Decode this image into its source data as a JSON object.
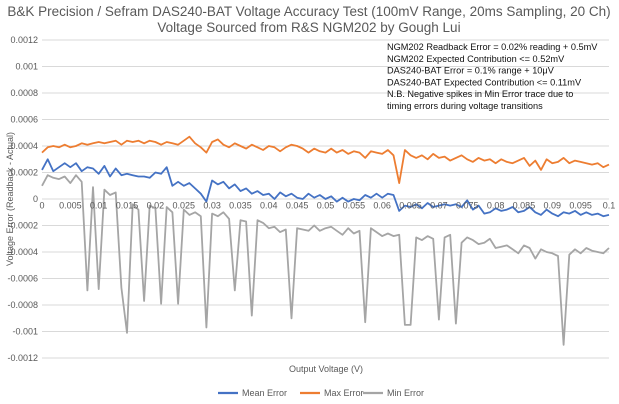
{
  "chart_data": {
    "type": "line",
    "title": "B&K Precision / Sefram DAS240-BAT Voltage Accuracy Test (100mV Range, 20ms Sampling, 20 Ch)",
    "subtitle": "Voltage Sourced from R&S NGM202 by Gough Lui",
    "xlabel": "Output Voltage (V)",
    "ylabel": "Voltage Error (Readback - Actual)",
    "xlim": [
      0,
      0.1
    ],
    "ylim": [
      -0.0012,
      0.0012
    ],
    "grid": true,
    "legend_position": "bottom",
    "x_ticks": [
      "0",
      "0.005",
      "0.01",
      "0.015",
      "0.02",
      "0.025",
      "0.03",
      "0.035",
      "0.04",
      "0.045",
      "0.05",
      "0.055",
      "0.06",
      "0.065",
      "0.07",
      "0.075",
      "0.08",
      "0.085",
      "0.09",
      "0.095",
      "0.1"
    ],
    "y_ticks": [
      "0.0012",
      "0.001",
      "0.0008",
      "0.0006",
      "0.0004",
      "0.0002",
      "0",
      "-0.0002",
      "-0.0004",
      "-0.0006",
      "-0.0008",
      "-0.001",
      "-0.0012"
    ],
    "annotations": [
      "NGM202 Readback Error = 0.02% reading + 0.5mV",
      "NGM202 Expected Contribution <= 0.52mV",
      "DAS240-BAT Error = 0.1% range + 10μV",
      "DAS240-BAT Expected Contribution <= 0.11mV",
      "N.B. Negative spikes in Min Error trace due to",
      "timing errors during voltage transitions"
    ],
    "x_step": 0.001,
    "series": [
      {
        "name": "Mean Error",
        "color": "#4472c4",
        "values": [
          0.00022,
          0.0003,
          0.00021,
          0.00024,
          0.00027,
          0.00024,
          0.00027,
          0.00021,
          0.00024,
          0.00023,
          0.00019,
          0.00025,
          0.00017,
          0.00023,
          0.00018,
          0.00019,
          0.00018,
          0.00017,
          0.00017,
          0.00016,
          0.0002,
          0.00019,
          0.00024,
          0.0001,
          0.00013,
          0.0001,
          0.00012,
          8e-05,
          4e-05,
          -2e-05,
          0.00014,
          0.00011,
          0.00013,
          8e-05,
          0.00011,
          6e-05,
          8e-05,
          4e-05,
          6e-05,
          3e-05,
          4e-05,
          0.0,
          5e-05,
          2e-05,
          4e-05,
          1e-05,
          0.0,
          4e-05,
          1e-05,
          3e-05,
          0.0,
          2e-05,
          -2e-05,
          1e-05,
          -2e-05,
          0.0,
          -1e-05,
          3e-05,
          1e-05,
          4e-05,
          1e-05,
          4e-05,
          3e-05,
          -9e-05,
          -5e-05,
          -6e-05,
          -4e-05,
          -7e-05,
          -3e-05,
          -6e-05,
          -5e-05,
          -4e-05,
          -5e-05,
          -4e-05,
          -6e-05,
          -1e-05,
          -8e-05,
          -5e-05,
          -0.00011,
          -0.0001,
          -7e-05,
          -9e-05,
          -8e-05,
          -6e-05,
          -0.0001,
          -9e-05,
          -6e-05,
          -0.0001,
          -0.00012,
          -8e-05,
          -0.00011,
          -0.00013,
          -0.0001,
          -0.00011,
          -9e-05,
          -0.00012,
          -0.0001,
          -0.00012,
          -0.00011,
          -0.00013,
          -0.00012
        ]
      },
      {
        "name": "Max Error",
        "color": "#ed7d31",
        "values": [
          0.00035,
          0.00039,
          0.0004,
          0.00039,
          0.00041,
          0.00039,
          0.0004,
          0.00042,
          0.00041,
          0.00042,
          0.00043,
          0.00042,
          0.00043,
          0.00044,
          0.00041,
          0.00044,
          0.00043,
          0.00044,
          0.00042,
          0.00044,
          0.00043,
          0.00041,
          0.00043,
          0.00042,
          0.00041,
          0.00044,
          0.00047,
          0.00042,
          0.00039,
          0.00035,
          0.00043,
          0.00045,
          0.00041,
          0.00039,
          0.00042,
          0.0004,
          0.00038,
          0.00041,
          0.00039,
          0.00037,
          0.0004,
          0.00039,
          0.00036,
          0.00039,
          0.00041,
          0.0004,
          0.00038,
          0.00035,
          0.00038,
          0.00036,
          0.00035,
          0.00038,
          0.00035,
          0.00037,
          0.00034,
          0.00036,
          0.00035,
          0.00031,
          0.00036,
          0.00035,
          0.00034,
          0.00037,
          0.00033,
          0.00012,
          0.00037,
          0.00033,
          0.00031,
          0.00033,
          0.0003,
          0.00034,
          0.00031,
          0.00032,
          0.00029,
          0.00031,
          0.00033,
          0.0003,
          0.00028,
          0.00031,
          0.00029,
          0.0003,
          0.00027,
          0.0003,
          0.00028,
          0.00027,
          0.00029,
          0.00031,
          0.00025,
          0.00029,
          0.00022,
          0.0003,
          0.00027,
          0.00028,
          0.00031,
          0.00027,
          0.00029,
          0.00028,
          0.00027,
          0.00026,
          0.00027,
          0.00024,
          0.00026
        ]
      },
      {
        "name": "Min Error",
        "color": "#a5a5a5",
        "values": [
          0.0001,
          0.00018,
          0.00016,
          0.00015,
          0.00017,
          0.00012,
          0.00018,
          0.00013,
          -0.00069,
          9e-05,
          -0.00068,
          7e-05,
          3e-05,
          5e-05,
          -0.00067,
          -0.00101,
          -4e-05,
          -8e-05,
          -0.00077,
          -5e-05,
          -7e-05,
          -0.00079,
          -6e-05,
          -0.0001,
          -0.00079,
          -8e-05,
          -0.00012,
          -0.0001,
          -0.00013,
          -0.00097,
          -0.00011,
          -0.00013,
          -0.0001,
          -0.00015,
          -0.00069,
          -0.00016,
          -0.00017,
          -0.00088,
          -0.00016,
          -0.00018,
          -0.00022,
          -0.00021,
          -0.00025,
          -0.00023,
          -0.0009,
          -0.00022,
          -0.00023,
          -0.00024,
          -0.0002,
          -0.00024,
          -0.00022,
          -0.00021,
          -0.00024,
          -0.00027,
          -0.00022,
          -0.00026,
          -0.00024,
          -0.00093,
          -0.00022,
          -0.00025,
          -0.00028,
          -0.00026,
          -0.00028,
          -0.00027,
          -0.00095,
          -0.00095,
          -0.00029,
          -0.00031,
          -0.00028,
          -0.0003,
          -0.00091,
          -0.00029,
          -0.00027,
          -0.00094,
          -0.00033,
          -0.00029,
          -0.00031,
          -0.00034,
          -0.00033,
          -0.0003,
          -0.00037,
          -0.00036,
          -0.00035,
          -0.00038,
          -0.00041,
          -0.00035,
          -0.00037,
          -0.00045,
          -0.00038,
          -0.0004,
          -0.00041,
          -0.00043,
          -0.0011,
          -0.00042,
          -0.00038,
          -0.00041,
          -0.00037,
          -0.00039,
          -0.0004,
          -0.00041,
          -0.00037
        ]
      }
    ]
  }
}
